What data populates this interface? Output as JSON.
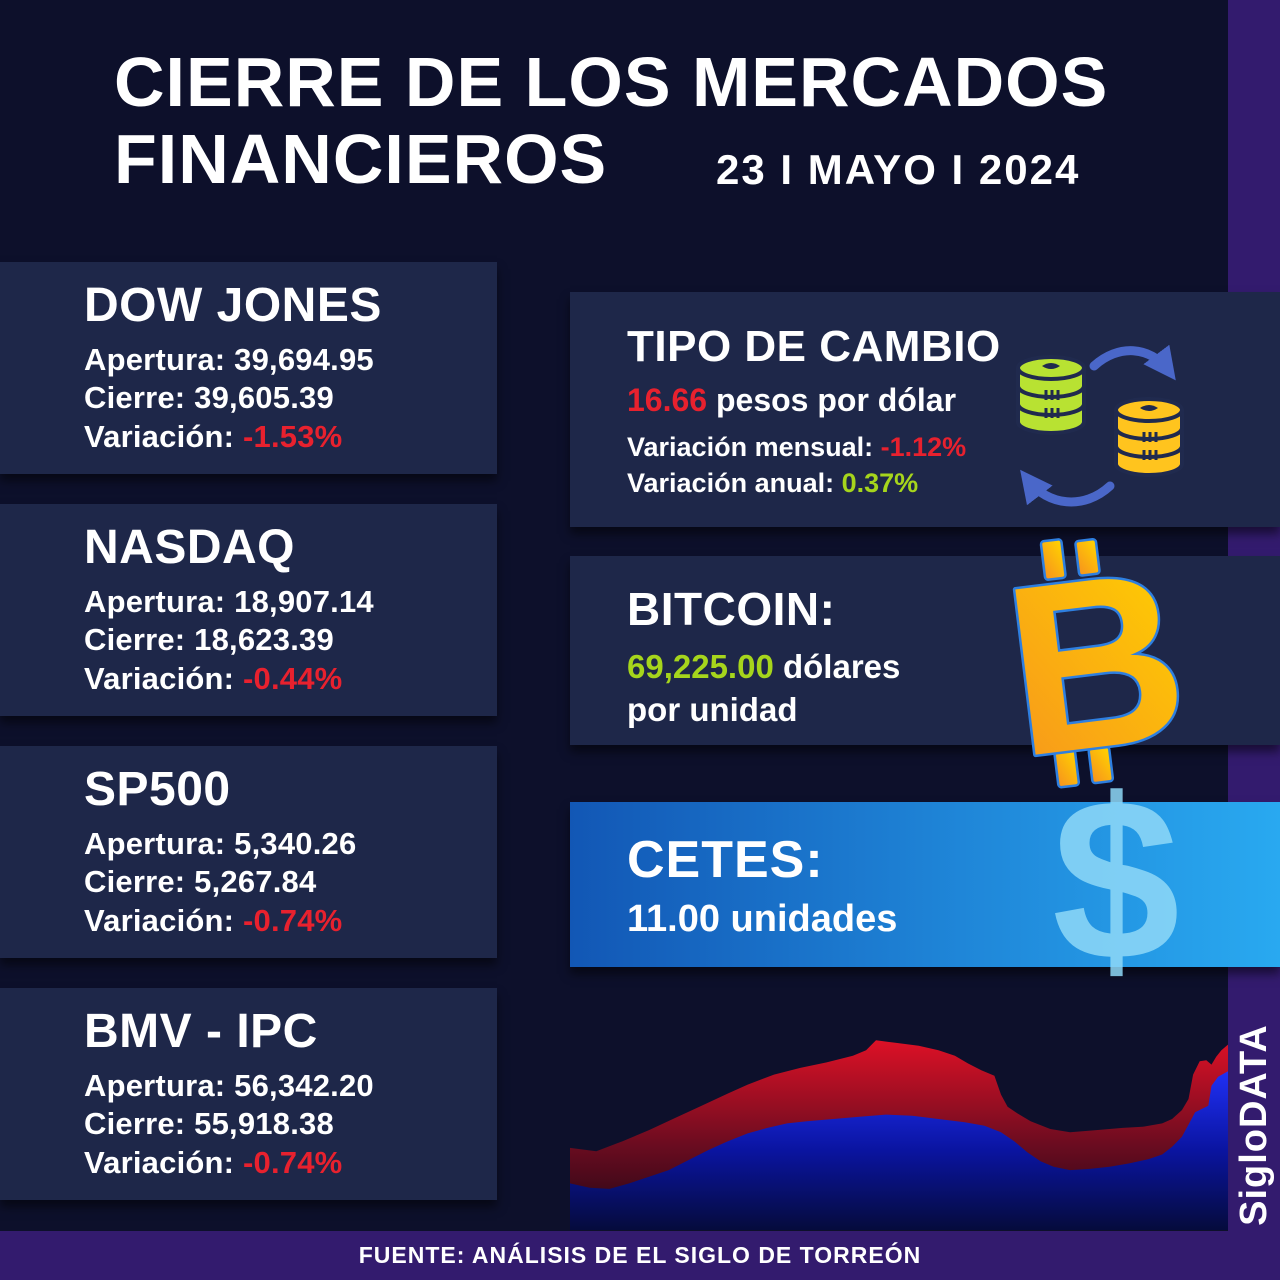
{
  "header": {
    "title_line1": "CIERRE DE LOS MERCADOS",
    "title_line2": "FINANCIEROS",
    "date": "23 I MAYO I 2024"
  },
  "labels": {
    "apertura": "Apertura:",
    "cierre": "Cierre:",
    "variacion": "Variación:"
  },
  "indices": [
    {
      "name": "DOW JONES",
      "apertura": "39,694.95",
      "cierre": "39,605.39",
      "variacion": "-1.53%"
    },
    {
      "name": "NASDAQ",
      "apertura": "18,907.14",
      "cierre": "18,623.39",
      "variacion": "-0.44%"
    },
    {
      "name": "SP500",
      "apertura": "5,340.26",
      "cierre": "5,267.84",
      "variacion": "-0.74%"
    },
    {
      "name": "BMV - IPC",
      "apertura": "56,342.20",
      "cierre": "55,918.38",
      "variacion": "-0.74%"
    }
  ],
  "exchange": {
    "title": "TIPO DE CAMBIO",
    "rate": "16.66",
    "rate_suffix": "pesos por dólar",
    "monthly_label": "Variación mensual:",
    "monthly_value": "-1.12%",
    "annual_label": "Variación anual:",
    "annual_value": "0.37%"
  },
  "bitcoin": {
    "title": "BITCOIN:",
    "price": "69,225.00",
    "price_suffix": "dólares",
    "unit_line": "por unidad"
  },
  "cetes": {
    "title": "CETES:",
    "value": "11.00 unidades"
  },
  "footer": {
    "source": "FUENTE: ANÁLISIS DE EL SIGLO DE TORREÓN",
    "brand": "SigloDATA"
  },
  "colors": {
    "page_bg": "#0d102b",
    "panel_bg": "#1e2749",
    "purple_strip": "#331b6e",
    "negative_red": "#e8212e",
    "positive_lime": "#a6d51c",
    "cetes_gradient_left": "#1257b5",
    "cetes_gradient_right": "#29a9f0",
    "bitcoin_orange_top": "#ffd200",
    "bitcoin_orange_bottom": "#f7941d",
    "bitcoin_outline_blue": "#2e7fe0",
    "coin_green": "#b8e232",
    "coin_gold": "#ffc41e",
    "arrow_blue": "#4a67c9",
    "chart_red": "#de1126",
    "chart_blue": "#2030f5"
  },
  "chart_data": {
    "type": "area",
    "title": "",
    "xlabel": "",
    "ylabel": "",
    "grid": false,
    "legend": false,
    "description": "Decorative stylized market silhouette at bottom right; no axes, ticks or labels. Points are normalized (x 0-1 left-right, y 0-1 top-bottom) top edges of each area.",
    "series": [
      {
        "name": "red-area",
        "points": [
          [
            0,
            0.63
          ],
          [
            0.04,
            0.645
          ],
          [
            0.08,
            0.6
          ],
          [
            0.12,
            0.55
          ],
          [
            0.16,
            0.495
          ],
          [
            0.2,
            0.44
          ],
          [
            0.24,
            0.385
          ],
          [
            0.27,
            0.345
          ],
          [
            0.31,
            0.3
          ],
          [
            0.35,
            0.27
          ],
          [
            0.39,
            0.245
          ],
          [
            0.43,
            0.215
          ],
          [
            0.45,
            0.19
          ],
          [
            0.465,
            0.145
          ],
          [
            0.49,
            0.155
          ],
          [
            0.53,
            0.17
          ],
          [
            0.56,
            0.19
          ],
          [
            0.585,
            0.215
          ],
          [
            0.605,
            0.25
          ],
          [
            0.625,
            0.28
          ],
          [
            0.645,
            0.305
          ],
          [
            0.655,
            0.39
          ],
          [
            0.665,
            0.445
          ],
          [
            0.68,
            0.475
          ],
          [
            0.7,
            0.51
          ],
          [
            0.73,
            0.545
          ],
          [
            0.76,
            0.56
          ],
          [
            0.8,
            0.55
          ],
          [
            0.84,
            0.54
          ],
          [
            0.87,
            0.535
          ],
          [
            0.9,
            0.52
          ],
          [
            0.915,
            0.5
          ],
          [
            0.93,
            0.46
          ],
          [
            0.94,
            0.41
          ],
          [
            0.947,
            0.3
          ],
          [
            0.957,
            0.24
          ],
          [
            0.967,
            0.235
          ],
          [
            0.975,
            0.255
          ],
          [
            0.982,
            0.22
          ],
          [
            0.99,
            0.19
          ],
          [
            1,
            0.165
          ]
        ]
      },
      {
        "name": "blue-area",
        "points": [
          [
            0,
            0.79
          ],
          [
            0.03,
            0.81
          ],
          [
            0.06,
            0.815
          ],
          [
            0.09,
            0.79
          ],
          [
            0.12,
            0.76
          ],
          [
            0.15,
            0.73
          ],
          [
            0.18,
            0.685
          ],
          [
            0.21,
            0.64
          ],
          [
            0.24,
            0.6
          ],
          [
            0.27,
            0.565
          ],
          [
            0.3,
            0.54
          ],
          [
            0.33,
            0.52
          ],
          [
            0.36,
            0.51
          ],
          [
            0.4,
            0.5
          ],
          [
            0.44,
            0.49
          ],
          [
            0.48,
            0.48
          ],
          [
            0.52,
            0.485
          ],
          [
            0.56,
            0.5
          ],
          [
            0.6,
            0.515
          ],
          [
            0.63,
            0.53
          ],
          [
            0.655,
            0.56
          ],
          [
            0.675,
            0.6
          ],
          [
            0.695,
            0.65
          ],
          [
            0.715,
            0.69
          ],
          [
            0.735,
            0.715
          ],
          [
            0.76,
            0.73
          ],
          [
            0.79,
            0.725
          ],
          [
            0.82,
            0.715
          ],
          [
            0.85,
            0.7
          ],
          [
            0.88,
            0.68
          ],
          [
            0.9,
            0.66
          ],
          [
            0.915,
            0.625
          ],
          [
            0.93,
            0.58
          ],
          [
            0.94,
            0.525
          ],
          [
            0.95,
            0.47
          ],
          [
            0.96,
            0.455
          ],
          [
            0.97,
            0.44
          ],
          [
            0.975,
            0.35
          ],
          [
            0.985,
            0.31
          ],
          [
            1,
            0.285
          ]
        ]
      }
    ]
  }
}
